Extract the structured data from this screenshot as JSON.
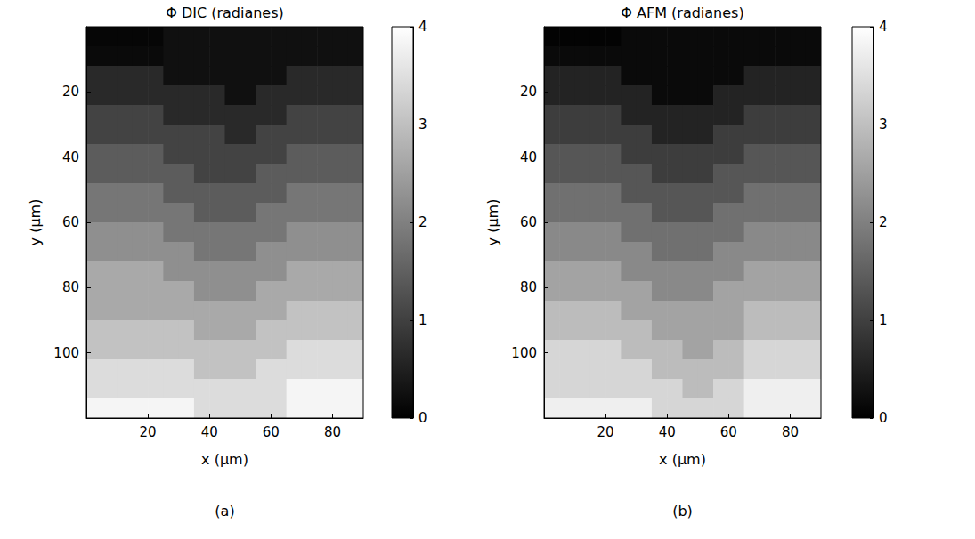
{
  "chart_data": [
    {
      "type": "heatmap",
      "title": "Φ DIC (radianes)",
      "x_label": "x (µm)",
      "y_label": "y (µm)",
      "label": "(a)",
      "xlim": [
        0,
        90
      ],
      "ylim": [
        0,
        120
      ],
      "xticks": [
        20,
        40,
        60,
        80
      ],
      "yticks": [
        20,
        40,
        60,
        80,
        100
      ],
      "color": "gray",
      "colorbar": {
        "range": [
          0,
          4
        ],
        "ticks": [
          0,
          1,
          2,
          3,
          4
        ]
      },
      "x_edges": [
        0,
        5,
        10,
        15,
        20,
        25,
        30,
        35,
        40,
        45,
        50,
        55,
        60,
        65,
        70,
        75,
        80,
        85,
        90
      ],
      "y_edges": [
        0,
        6,
        12,
        18,
        24,
        30,
        36,
        42,
        48,
        54,
        60,
        66,
        72,
        78,
        84,
        90,
        96,
        102,
        108,
        114,
        120
      ],
      "z": [
        [
          0.1,
          0.1,
          0.1,
          0.1,
          0.1,
          0.25,
          0.25,
          0.25,
          0.25,
          0.25,
          0.25,
          0.25,
          0.25,
          0.25,
          0.25,
          0.25,
          0.25,
          0.25
        ],
        [
          0.15,
          0.15,
          0.15,
          0.15,
          0.15,
          0.25,
          0.25,
          0.25,
          0.25,
          0.25,
          0.25,
          0.25,
          0.25,
          0.25,
          0.25,
          0.25,
          0.25,
          0.25
        ],
        [
          0.65,
          0.65,
          0.65,
          0.65,
          0.65,
          0.25,
          0.25,
          0.25,
          0.25,
          0.25,
          0.25,
          0.25,
          0.25,
          0.65,
          0.65,
          0.65,
          0.65,
          0.65
        ],
        [
          0.65,
          0.65,
          0.65,
          0.65,
          0.65,
          0.65,
          0.65,
          0.65,
          0.65,
          0.25,
          0.25,
          0.65,
          0.65,
          0.65,
          0.65,
          0.65,
          0.65,
          0.65
        ],
        [
          1.05,
          1.05,
          1.05,
          1.05,
          1.05,
          0.65,
          0.65,
          0.65,
          0.65,
          0.65,
          0.65,
          0.65,
          0.65,
          1.05,
          1.05,
          1.05,
          1.05,
          1.05
        ],
        [
          1.05,
          1.05,
          1.05,
          1.05,
          1.05,
          1.05,
          1.05,
          1.05,
          1.05,
          0.65,
          0.65,
          1.05,
          1.05,
          1.05,
          1.05,
          1.05,
          1.05,
          1.05
        ],
        [
          1.45,
          1.45,
          1.45,
          1.45,
          1.45,
          1.05,
          1.05,
          1.05,
          1.05,
          1.05,
          1.05,
          1.05,
          1.05,
          1.45,
          1.45,
          1.45,
          1.45,
          1.45
        ],
        [
          1.45,
          1.45,
          1.45,
          1.45,
          1.45,
          1.45,
          1.45,
          1.05,
          1.05,
          1.05,
          1.05,
          1.45,
          1.45,
          1.45,
          1.45,
          1.45,
          1.45,
          1.45
        ],
        [
          1.85,
          1.85,
          1.85,
          1.85,
          1.85,
          1.45,
          1.45,
          1.45,
          1.45,
          1.45,
          1.45,
          1.45,
          1.45,
          1.85,
          1.85,
          1.85,
          1.85,
          1.85
        ],
        [
          1.85,
          1.85,
          1.85,
          1.85,
          1.85,
          1.85,
          1.85,
          1.45,
          1.45,
          1.45,
          1.45,
          1.85,
          1.85,
          1.85,
          1.85,
          1.85,
          1.85,
          1.85
        ],
        [
          2.25,
          2.25,
          2.25,
          2.25,
          2.25,
          1.85,
          1.85,
          1.85,
          1.85,
          1.85,
          1.85,
          1.85,
          1.85,
          2.25,
          2.25,
          2.25,
          2.25,
          2.25
        ],
        [
          2.25,
          2.25,
          2.25,
          2.25,
          2.25,
          2.25,
          2.25,
          1.85,
          1.85,
          1.85,
          1.85,
          2.25,
          2.25,
          2.25,
          2.25,
          2.25,
          2.25,
          2.25
        ],
        [
          2.65,
          2.65,
          2.65,
          2.65,
          2.65,
          2.25,
          2.25,
          2.25,
          2.25,
          2.25,
          2.25,
          2.25,
          2.25,
          2.65,
          2.65,
          2.65,
          2.65,
          2.65
        ],
        [
          2.65,
          2.65,
          2.65,
          2.65,
          2.65,
          2.65,
          2.65,
          2.25,
          2.25,
          2.25,
          2.25,
          2.65,
          2.65,
          2.65,
          2.65,
          2.65,
          2.65,
          2.65
        ],
        [
          2.65,
          2.65,
          2.65,
          2.65,
          2.65,
          2.65,
          2.65,
          2.65,
          2.65,
          2.65,
          2.65,
          2.65,
          2.65,
          3.05,
          3.05,
          3.05,
          3.05,
          3.05
        ],
        [
          3.05,
          3.05,
          3.05,
          3.05,
          3.05,
          3.05,
          3.05,
          2.65,
          2.65,
          2.65,
          2.65,
          3.05,
          3.05,
          3.05,
          3.05,
          3.05,
          3.05,
          3.05
        ],
        [
          3.05,
          3.05,
          3.05,
          3.05,
          3.05,
          3.05,
          3.05,
          3.05,
          3.05,
          3.05,
          3.05,
          3.05,
          3.05,
          3.45,
          3.45,
          3.45,
          3.45,
          3.45
        ],
        [
          3.45,
          3.45,
          3.45,
          3.45,
          3.45,
          3.45,
          3.45,
          3.05,
          3.05,
          3.05,
          3.05,
          3.45,
          3.45,
          3.45,
          3.45,
          3.45,
          3.45,
          3.45
        ],
        [
          3.45,
          3.45,
          3.45,
          3.45,
          3.45,
          3.45,
          3.45,
          3.45,
          3.45,
          3.45,
          3.45,
          3.45,
          3.45,
          3.85,
          3.85,
          3.85,
          3.85,
          3.85
        ],
        [
          3.85,
          3.85,
          3.85,
          3.85,
          3.85,
          3.85,
          3.85,
          3.45,
          3.45,
          3.45,
          3.45,
          3.45,
          3.45,
          3.85,
          3.85,
          3.85,
          3.85,
          3.85
        ]
      ]
    },
    {
      "type": "heatmap",
      "title": "Φ AFM (radianes)",
      "x_label": "x (µm)",
      "y_label": "y (µm)",
      "label": "(b)",
      "xlim": [
        0,
        90
      ],
      "ylim": [
        0,
        120
      ],
      "xticks": [
        20,
        40,
        60,
        80
      ],
      "yticks": [
        20,
        40,
        60,
        80,
        100
      ],
      "color": "gray",
      "colorbar": {
        "range": [
          0,
          4
        ],
        "ticks": [
          0,
          1,
          2,
          3,
          4
        ]
      },
      "x_edges": [
        0,
        5,
        10,
        15,
        20,
        25,
        30,
        35,
        40,
        45,
        50,
        55,
        60,
        65,
        70,
        75,
        80,
        85,
        90
      ],
      "y_edges": [
        0,
        6,
        12,
        18,
        24,
        30,
        36,
        42,
        48,
        54,
        60,
        66,
        72,
        78,
        84,
        90,
        96,
        102,
        108,
        114,
        120
      ],
      "z": [
        [
          0.05,
          0.05,
          0.05,
          0.05,
          0.05,
          0.15,
          0.15,
          0.15,
          0.15,
          0.15,
          0.15,
          0.15,
          0.15,
          0.15,
          0.15,
          0.15,
          0.15,
          0.15
        ],
        [
          0.15,
          0.15,
          0.15,
          0.15,
          0.15,
          0.15,
          0.15,
          0.15,
          0.15,
          0.15,
          0.15,
          0.15,
          0.15,
          0.15,
          0.15,
          0.15,
          0.15,
          0.15
        ],
        [
          0.55,
          0.55,
          0.55,
          0.55,
          0.55,
          0.15,
          0.15,
          0.15,
          0.15,
          0.15,
          0.15,
          0.15,
          0.15,
          0.55,
          0.55,
          0.55,
          0.55,
          0.55
        ],
        [
          0.55,
          0.55,
          0.55,
          0.55,
          0.55,
          0.55,
          0.55,
          0.15,
          0.15,
          0.15,
          0.15,
          0.55,
          0.55,
          0.55,
          0.55,
          0.55,
          0.55,
          0.55
        ],
        [
          0.95,
          0.95,
          0.95,
          0.95,
          0.95,
          0.55,
          0.55,
          0.55,
          0.55,
          0.55,
          0.55,
          0.55,
          0.55,
          0.95,
          0.95,
          0.95,
          0.95,
          0.95
        ],
        [
          0.95,
          0.95,
          0.95,
          0.95,
          0.95,
          0.95,
          0.95,
          0.55,
          0.55,
          0.55,
          0.55,
          0.95,
          0.95,
          0.95,
          0.95,
          0.95,
          0.95,
          0.95
        ],
        [
          1.35,
          1.35,
          1.35,
          1.35,
          1.35,
          0.95,
          0.95,
          0.95,
          0.95,
          0.95,
          0.95,
          0.95,
          0.95,
          1.35,
          1.35,
          1.35,
          1.35,
          1.35
        ],
        [
          1.35,
          1.35,
          1.35,
          1.35,
          1.35,
          1.35,
          1.35,
          0.95,
          0.95,
          0.95,
          0.95,
          1.35,
          1.35,
          1.35,
          1.35,
          1.35,
          1.35,
          1.35
        ],
        [
          1.75,
          1.75,
          1.75,
          1.75,
          1.75,
          1.35,
          1.35,
          1.35,
          1.35,
          1.35,
          1.35,
          1.35,
          1.35,
          1.75,
          1.75,
          1.75,
          1.75,
          1.75
        ],
        [
          1.75,
          1.75,
          1.75,
          1.75,
          1.75,
          1.75,
          1.75,
          1.35,
          1.35,
          1.35,
          1.35,
          1.75,
          1.75,
          1.75,
          1.75,
          1.75,
          1.75,
          1.75
        ],
        [
          2.15,
          2.15,
          2.15,
          2.15,
          2.15,
          1.75,
          1.75,
          1.75,
          1.75,
          1.75,
          1.75,
          1.75,
          1.75,
          2.15,
          2.15,
          2.15,
          2.15,
          2.15
        ],
        [
          2.15,
          2.15,
          2.15,
          2.15,
          2.15,
          2.15,
          2.15,
          1.75,
          1.75,
          1.75,
          1.75,
          2.15,
          2.15,
          2.15,
          2.15,
          2.15,
          2.15,
          2.15
        ],
        [
          2.55,
          2.55,
          2.55,
          2.55,
          2.55,
          2.15,
          2.15,
          2.15,
          2.15,
          2.15,
          2.15,
          2.15,
          2.15,
          2.55,
          2.55,
          2.55,
          2.55,
          2.55
        ],
        [
          2.55,
          2.55,
          2.55,
          2.55,
          2.55,
          2.55,
          2.55,
          2.15,
          2.15,
          2.15,
          2.15,
          2.55,
          2.55,
          2.55,
          2.55,
          2.55,
          2.55,
          2.55
        ],
        [
          2.95,
          2.95,
          2.95,
          2.95,
          2.95,
          2.55,
          2.55,
          2.55,
          2.55,
          2.55,
          2.55,
          2.55,
          2.55,
          2.95,
          2.95,
          2.95,
          2.95,
          2.95
        ],
        [
          2.95,
          2.95,
          2.95,
          2.95,
          2.95,
          2.95,
          2.95,
          2.55,
          2.55,
          2.55,
          2.55,
          2.55,
          2.55,
          2.95,
          2.95,
          2.95,
          2.95,
          2.95
        ],
        [
          3.35,
          3.35,
          3.35,
          3.35,
          3.35,
          2.95,
          2.95,
          2.95,
          2.95,
          2.55,
          2.55,
          2.95,
          2.95,
          3.35,
          3.35,
          3.35,
          3.35,
          3.35
        ],
        [
          3.35,
          3.35,
          3.35,
          3.35,
          3.35,
          3.35,
          3.35,
          2.95,
          2.95,
          2.95,
          2.95,
          2.95,
          2.95,
          3.35,
          3.35,
          3.35,
          3.35,
          3.35
        ],
        [
          3.35,
          3.35,
          3.35,
          3.35,
          3.35,
          3.35,
          3.35,
          3.35,
          3.35,
          2.95,
          2.95,
          3.35,
          3.35,
          3.75,
          3.75,
          3.75,
          3.75,
          3.75
        ],
        [
          3.75,
          3.75,
          3.75,
          3.75,
          3.75,
          3.75,
          3.75,
          3.35,
          3.35,
          3.35,
          3.35,
          3.35,
          3.35,
          3.75,
          3.75,
          3.75,
          3.75,
          3.75
        ]
      ]
    }
  ]
}
